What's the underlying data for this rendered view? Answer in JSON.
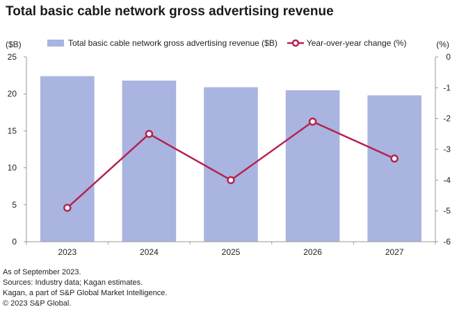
{
  "chart_data": {
    "type": "bar+line",
    "title": "Total basic cable network gross advertising revenue",
    "categories": [
      "2023",
      "2024",
      "2025",
      "2026",
      "2027"
    ],
    "series": [
      {
        "name": "Total basic cable network gross advertising revenue ($B)",
        "type": "bar",
        "axis": "left",
        "color": "#a9b4e0",
        "values": [
          22.4,
          21.8,
          20.9,
          20.5,
          19.8
        ]
      },
      {
        "name": "Year-over-year change (%)",
        "type": "line",
        "axis": "right",
        "color": "#b5224f",
        "values": [
          -4.9,
          -2.5,
          -4.0,
          -2.1,
          -3.3
        ]
      }
    ],
    "left_axis": {
      "label": "($B)",
      "ylim": [
        0,
        25
      ],
      "ticks": [
        "0",
        "5",
        "10",
        "15",
        "20",
        "25"
      ]
    },
    "right_axis": {
      "label": "(%)",
      "ylim": [
        -6,
        0
      ],
      "ticks": [
        "0",
        "-1",
        "-2",
        "-3",
        "-4",
        "-5",
        "-6"
      ]
    },
    "legend_position": "top"
  },
  "notes": [
    "As of September 2023.",
    "Sources: Industry data; Kagan estimates.",
    "Kagan, a part of S&P Global Market Intelligence.",
    "© 2023 S&P Global."
  ]
}
